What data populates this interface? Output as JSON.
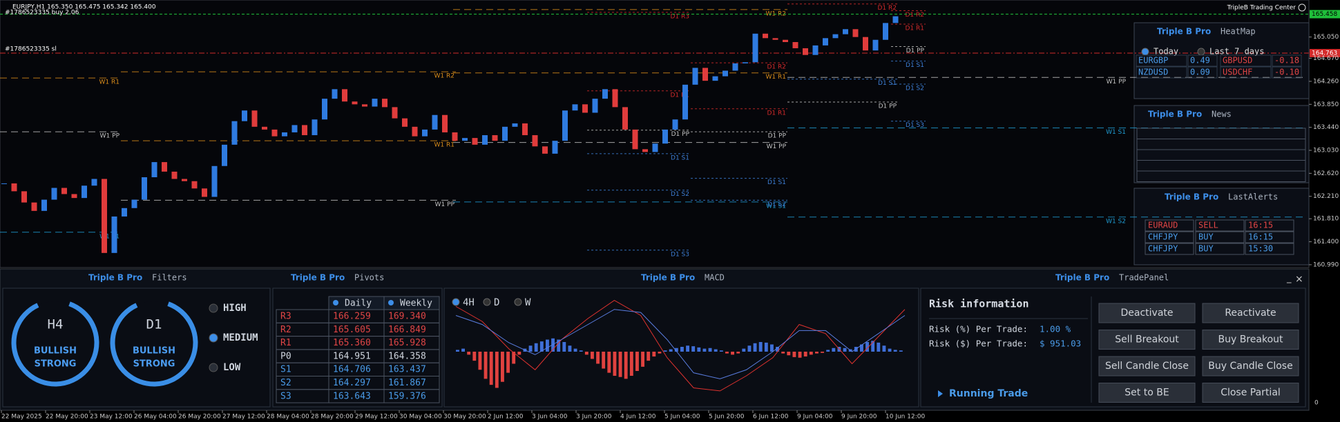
{
  "header": {
    "symbol": "EURJPY,H1  165.350 165.475 165.342 165.400",
    "order": "#1786523335 buy 2.06",
    "stop": "#1786523335 sl",
    "brand": "TripleB Trading Center"
  },
  "chart": {
    "type": "candlestick",
    "up_color": "#2f7be0",
    "down_color": "#e03c3c",
    "closes": [
      162.44,
      162.3,
      162.1,
      161.95,
      162.15,
      162.36,
      162.25,
      162.18,
      162.4,
      162.52,
      161.2,
      161.85,
      162.0,
      162.15,
      162.55,
      162.82,
      162.65,
      162.52,
      162.48,
      162.35,
      162.2,
      162.75,
      163.13,
      163.55,
      163.74,
      163.45,
      163.4,
      163.28,
      163.35,
      163.48,
      163.3,
      163.58,
      163.95,
      164.12,
      163.9,
      163.85,
      163.81,
      163.95,
      163.8,
      163.6,
      163.45,
      163.28,
      163.4,
      163.66,
      163.35,
      163.2,
      163.25,
      163.13,
      163.3,
      163.2,
      163.45,
      163.51,
      163.3,
      163.1,
      162.97,
      163.2,
      163.74,
      163.85,
      163.7,
      163.95,
      164.12,
      163.8,
      163.4,
      163.05,
      163.0,
      163.15,
      163.4,
      163.58,
      164.2,
      164.5,
      164.27,
      164.35,
      164.45,
      164.58,
      164.6,
      165.11,
      165.03,
      165.0,
      164.96,
      164.85,
      164.73,
      164.9,
      165.03,
      165.1,
      165.19,
      165.05,
      164.81,
      165.0,
      165.3,
      165.42
    ],
    "ylim": [
      160.94,
      165.71
    ],
    "yticks": [
      {
        "value": 165.05,
        "label": "165.050"
      },
      {
        "value": 164.67,
        "label": "164.670"
      },
      {
        "value": 164.26,
        "label": "164.260"
      },
      {
        "value": 163.85,
        "label": "163.850"
      },
      {
        "value": 163.44,
        "label": "163.440"
      },
      {
        "value": 163.03,
        "label": "163.030"
      },
      {
        "value": 162.62,
        "label": "162.620"
      },
      {
        "value": 162.21,
        "label": "162.210"
      },
      {
        "value": 161.81,
        "label": "161.810"
      },
      {
        "value": 161.4,
        "label": "161.400"
      },
      {
        "value": 160.99,
        "label": "160.990"
      }
    ],
    "xticks": [
      "22 May 2025",
      "22 May 20:00",
      "23 May 12:00",
      "26 May 04:00",
      "26 May 20:00",
      "27 May 12:00",
      "28 May 04:00",
      "28 May 20:00",
      "29 May 12:00",
      "30 May 04:00",
      "30 May 20:00",
      "2 Jun 12:00",
      "3 Jun 04:00",
      "3 Jun 20:00",
      "4 Jun 12:00",
      "5 Jun 04:00",
      "5 Jun 20:00",
      "6 Jun 12:00",
      "9 Jun 04:00",
      "9 Jun 20:00",
      "10 Jun 12:00"
    ],
    "orders": [
      {
        "value": 165.458,
        "label": "165.458",
        "color": "#1fbf3a"
      },
      {
        "value": 164.763,
        "label": "164.763",
        "color": "#d42a2a"
      }
    ],
    "levels": [
      {
        "label": "W1 R1",
        "value": 164.32,
        "color": "#d98c1a"
      },
      {
        "label": "W1 PP",
        "value": 163.36,
        "color": "#c0c0c0"
      },
      {
        "label": "W1 S1",
        "value": 161.57,
        "color": "#1f9bd1"
      },
      {
        "label": "W1 R2",
        "value": 164.43,
        "color": "#d98c1a"
      },
      {
        "label": "W1 R1",
        "value": 163.2,
        "color": "#d98c1a"
      },
      {
        "label": "W1 PP",
        "value": 162.14,
        "color": "#c0c0c0"
      },
      {
        "label": "W1 R2",
        "value": 165.54,
        "color": "#d98c1a"
      },
      {
        "label": "W1 R1",
        "value": 164.41,
        "color": "#d98c1a"
      },
      {
        "label": "W1 PP",
        "value": 163.17,
        "color": "#c0c0c0"
      },
      {
        "label": "W1 S1",
        "value": 162.11,
        "color": "#1f9bd1"
      },
      {
        "label": "W1 PP",
        "value": 164.33,
        "color": "#c0c0c0"
      },
      {
        "label": "W1 S1",
        "value": 163.43,
        "color": "#1f9bd1"
      },
      {
        "label": "W1 S2",
        "value": 161.84,
        "color": "#1f9bd1"
      },
      {
        "label": "D1 R3",
        "value": 165.49,
        "color": "#d42a2a"
      },
      {
        "label": "D1 R1",
        "value": 164.09,
        "color": "#d42a2a"
      },
      {
        "label": "D1 PP",
        "value": 163.39,
        "color": "#c0c0c0"
      },
      {
        "label": "D1 S1",
        "value": 162.97,
        "color": "#3d7fd6"
      },
      {
        "label": "D1 S2",
        "value": 162.32,
        "color": "#3d7fd6"
      },
      {
        "label": "D1 S3",
        "value": 161.25,
        "color": "#3d7fd6"
      },
      {
        "label": "D1 R2",
        "value": 164.59,
        "color": "#d42a2a"
      },
      {
        "label": "D1 R1",
        "value": 163.77,
        "color": "#d42a2a"
      },
      {
        "label": "D1 PP",
        "value": 163.36,
        "color": "#c0c0c0"
      },
      {
        "label": "D1 S1",
        "value": 162.53,
        "color": "#3d7fd6"
      },
      {
        "label": "D1 S2",
        "value": 162.14,
        "color": "#3d7fd6"
      },
      {
        "label": "D1 R2",
        "value": 165.64,
        "color": "#d42a2a"
      },
      {
        "label": "D1 PP",
        "value": 163.89,
        "color": "#c0c0c0"
      },
      {
        "label": "D1 S1",
        "value": 164.3,
        "color": "#3d7fd6"
      },
      {
        "label": "D1 R2",
        "value": 165.52,
        "color": "#d42a2a"
      },
      {
        "label": "D1 R1",
        "value": 165.28,
        "color": "#d42a2a"
      },
      {
        "label": "D1 PP",
        "value": 164.88,
        "color": "#c0c0c0"
      },
      {
        "label": "D1 S1",
        "value": 164.62,
        "color": "#3d7fd6"
      },
      {
        "label": "D1 S2",
        "value": 164.21,
        "color": "#3d7fd6"
      },
      {
        "label": "D1 S3",
        "value": 163.55,
        "color": "#3d7fd6"
      }
    ]
  },
  "heatmap": {
    "brand": "Triple B Pro",
    "title": "HeatMap",
    "periods": [
      "Today",
      "Last 7 days"
    ],
    "rows": [
      [
        "EURGBP",
        "0.49",
        "GBPUSD",
        "-0.18"
      ],
      [
        "NZDUSD",
        "0.09",
        "USDCHF",
        "-0.10"
      ]
    ]
  },
  "news": {
    "brand": "Triple B Pro",
    "title": "News"
  },
  "alerts": {
    "brand": "Triple B Pro",
    "title": "LastAlerts",
    "rows": [
      [
        "EURAUD",
        "SELL",
        "16:15"
      ],
      [
        "CHFJPY",
        "BUY",
        "16:15"
      ],
      [
        "CHFJPY",
        "BUY",
        "15:30"
      ]
    ]
  },
  "filters": {
    "brand": "Triple B Pro",
    "title": "Filters",
    "gauges": [
      {
        "tf": "H4",
        "lines": [
          "BULLISH",
          "STRONG"
        ]
      },
      {
        "tf": "D1",
        "lines": [
          "BULLISH",
          "STRONG"
        ]
      }
    ],
    "levels": [
      "HIGH",
      "MEDIUM",
      "LOW"
    ]
  },
  "pivots": {
    "brand": "Triple B Pro",
    "title": "Pivots",
    "columns": [
      "Daily",
      "Weekly"
    ],
    "rows": [
      [
        "R3",
        "166.259",
        "169.340"
      ],
      [
        "R2",
        "165.605",
        "166.849"
      ],
      [
        "R1",
        "165.360",
        "165.928"
      ],
      [
        "P0",
        "164.951",
        "164.358"
      ],
      [
        "S1",
        "164.706",
        "163.437"
      ],
      [
        "S2",
        "164.297",
        "161.867"
      ],
      [
        "S3",
        "163.643",
        "159.376"
      ]
    ]
  },
  "macd": {
    "brand": "Triple B Pro",
    "title": "MACD",
    "timeframes": [
      "4H",
      "D",
      "W"
    ],
    "scale_label": 0,
    "ylim": [
      -0.8,
      0.8
    ],
    "histogram": [
      0.03,
      0.05,
      -0.05,
      -0.15,
      -0.3,
      -0.45,
      -0.55,
      -0.6,
      -0.5,
      -0.35,
      -0.2,
      -0.05,
      0.05,
      0.1,
      0.14,
      0.17,
      0.2,
      0.22,
      0.2,
      0.16,
      0.1,
      0.05,
      0.02,
      -0.05,
      -0.12,
      -0.2,
      -0.28,
      -0.35,
      -0.4,
      -0.42,
      -0.45,
      -0.4,
      -0.32,
      -0.25,
      -0.15,
      -0.08,
      -0.03,
      0.02,
      0.04,
      0.06,
      0.08,
      0.1,
      0.09,
      0.07,
      0.05,
      0.06,
      0.04,
      0.02,
      -0.03,
      -0.05,
      -0.03,
      0.05,
      0.1,
      0.14,
      0.16,
      0.15,
      0.12,
      0.08,
      -0.03,
      -0.06,
      -0.09,
      -0.1,
      -0.08,
      -0.05,
      -0.03,
      -0.02,
      0.03,
      0.06,
      0.08,
      0.06,
      0.04,
      0.08,
      0.12,
      0.16,
      0.18,
      0.15,
      0.1,
      0.05,
      0.03,
      0.02
    ],
    "macd_line": {
      "color": "#e0322f",
      "values": [
        0.75,
        0.5,
        0.05,
        -0.3,
        0.2,
        0.55,
        0.85,
        0.6,
        -0.1,
        -0.6,
        -0.65,
        -0.4,
        -0.1,
        0.45,
        0.3,
        -0.2,
        0.25,
        0.7
      ]
    },
    "signal_line": {
      "color": "#5a7de0",
      "values": [
        0.6,
        0.45,
        0.15,
        -0.05,
        0.2,
        0.45,
        0.7,
        0.65,
        0.2,
        -0.35,
        -0.45,
        -0.3,
        0.0,
        0.35,
        0.35,
        0.0,
        0.3,
        0.6
      ]
    }
  },
  "trade_panel": {
    "brand": "Triple B Pro",
    "title": "TradePanel",
    "risk_title": "Risk information",
    "risk": [
      [
        "Risk (%) Per Trade:",
        "1.00 %"
      ],
      [
        "Risk ($) Per Trade:",
        "$ 951.03"
      ]
    ],
    "running": "Running Trade",
    "buttons": [
      "Deactivate",
      "Reactivate",
      "Sell Breakout",
      "Buy Breakout",
      "Sell Candle Close",
      "Buy Candle Close",
      "Set to BE",
      "Close Partial"
    ]
  }
}
